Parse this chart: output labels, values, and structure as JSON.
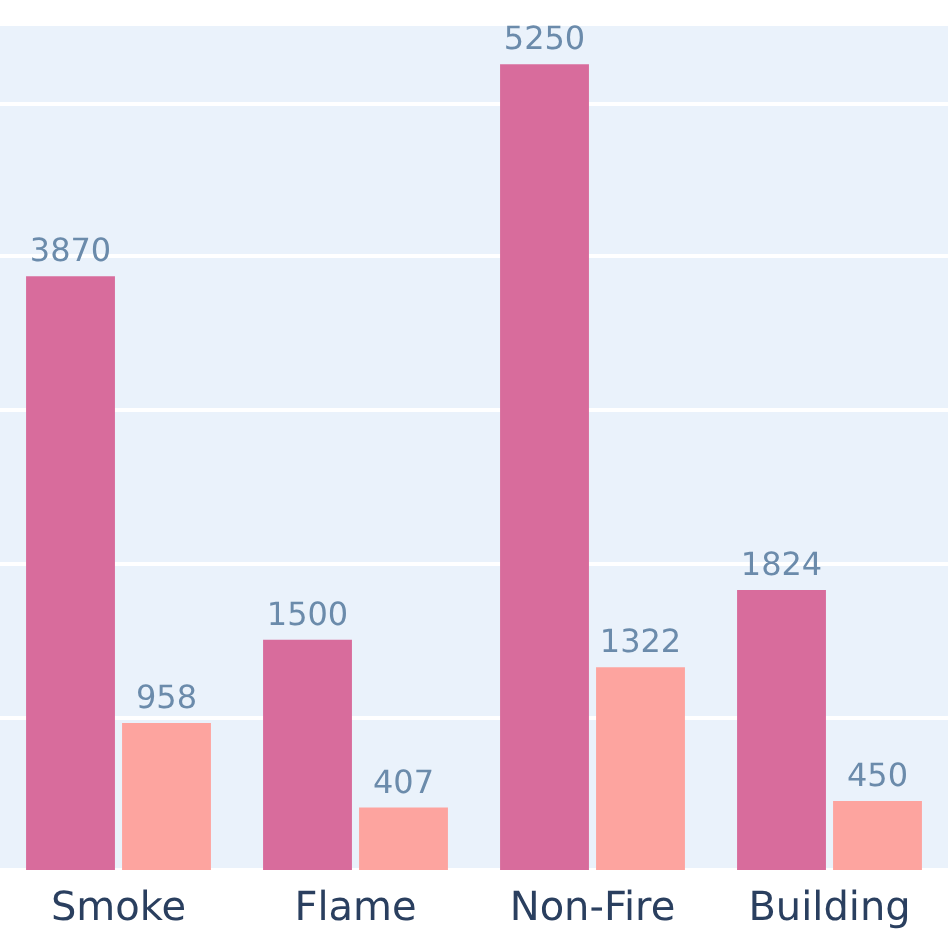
{
  "chart_data": {
    "type": "bar",
    "categories": [
      "Smoke",
      "Flame",
      "Non-Fire",
      "Building"
    ],
    "series": [
      {
        "color": "#d86c9c",
        "values": [
          3870,
          1500,
          5250,
          1824
        ]
      },
      {
        "color": "#fda49f",
        "values": [
          958,
          407,
          1322,
          450
        ]
      }
    ],
    "ylim": [
      0,
      5500
    ],
    "yticks": [
      0,
      1000,
      2000,
      3000,
      4000,
      5000
    ],
    "grid": "y",
    "tick_labels": "x",
    "data_labels": true
  }
}
